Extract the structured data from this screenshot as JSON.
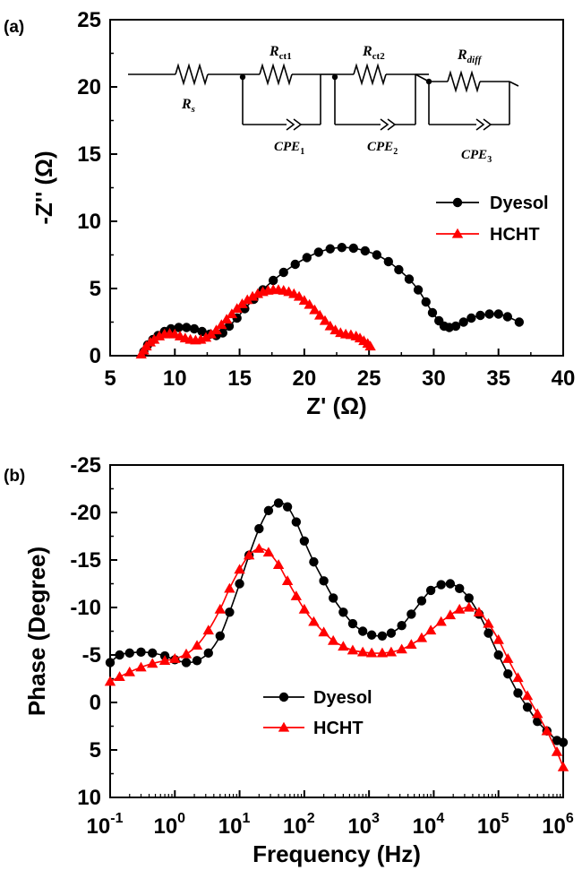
{
  "chart_data": [
    {
      "panel_label": "(a)",
      "type": "scatter",
      "xlabel": "Z' (Ω)",
      "ylabel": "-Z'' (Ω)",
      "xlim": [
        5,
        40
      ],
      "ylim": [
        0,
        25
      ],
      "xticks": [
        5,
        10,
        15,
        20,
        25,
        30,
        35,
        40
      ],
      "yticks": [
        0,
        5,
        10,
        15,
        20,
        25
      ],
      "legend_position": "center-right",
      "circuit_inset": {
        "rs": "R",
        "rs_sub": "s",
        "rct1": "R",
        "rct1_sub": "ct1",
        "rct2": "R",
        "rct2_sub": "ct2",
        "rdiff": "R",
        "rdiff_sub": "diff",
        "cpe1": "CPE",
        "cpe1_sub": "1",
        "cpe2": "CPE",
        "cpe2_sub": "2",
        "cpe3": "CPE",
        "cpe3_sub": "3"
      },
      "series": [
        {
          "name": "Dyesol",
          "color": "#000000",
          "marker": "circle",
          "points": [
            [
              7.6,
              0.3
            ],
            [
              7.9,
              0.8
            ],
            [
              8.3,
              1.2
            ],
            [
              8.7,
              1.5
            ],
            [
              9.2,
              1.8
            ],
            [
              9.7,
              2.0
            ],
            [
              10.3,
              2.1
            ],
            [
              10.9,
              2.1
            ],
            [
              11.5,
              2.0
            ],
            [
              12.1,
              1.8
            ],
            [
              12.7,
              1.6
            ],
            [
              13.2,
              1.5
            ],
            [
              13.7,
              1.7
            ],
            [
              14.2,
              2.2
            ],
            [
              14.8,
              2.8
            ],
            [
              15.4,
              3.5
            ],
            [
              16.1,
              4.2
            ],
            [
              16.8,
              4.9
            ],
            [
              17.6,
              5.6
            ],
            [
              18.4,
              6.2
            ],
            [
              19.3,
              6.8
            ],
            [
              20.2,
              7.3
            ],
            [
              21.1,
              7.7
            ],
            [
              22.0,
              7.95
            ],
            [
              22.9,
              8.05
            ],
            [
              23.8,
              8.0
            ],
            [
              24.7,
              7.8
            ],
            [
              25.6,
              7.5
            ],
            [
              26.5,
              7.0
            ],
            [
              27.3,
              6.4
            ],
            [
              28.1,
              5.7
            ],
            [
              28.8,
              4.9
            ],
            [
              29.4,
              4.0
            ],
            [
              29.9,
              3.2
            ],
            [
              30.4,
              2.6
            ],
            [
              30.8,
              2.2
            ],
            [
              31.2,
              2.1
            ],
            [
              31.7,
              2.2
            ],
            [
              32.3,
              2.5
            ],
            [
              32.9,
              2.8
            ],
            [
              33.6,
              3.0
            ],
            [
              34.3,
              3.1
            ],
            [
              35.0,
              3.1
            ],
            [
              35.7,
              2.9
            ],
            [
              36.6,
              2.5
            ]
          ]
        },
        {
          "name": "HCHT",
          "color": "#ff0000",
          "marker": "triangle",
          "points": [
            [
              7.4,
              0.1
            ],
            [
              7.6,
              0.4
            ],
            [
              7.8,
              0.7
            ],
            [
              8.1,
              1.0
            ],
            [
              8.4,
              1.2
            ],
            [
              8.8,
              1.45
            ],
            [
              9.2,
              1.6
            ],
            [
              9.6,
              1.65
            ],
            [
              10.0,
              1.6
            ],
            [
              10.4,
              1.45
            ],
            [
              10.8,
              1.3
            ],
            [
              11.2,
              1.2
            ],
            [
              11.6,
              1.15
            ],
            [
              12.0,
              1.2
            ],
            [
              12.4,
              1.35
            ],
            [
              12.8,
              1.6
            ],
            [
              13.2,
              1.9
            ],
            [
              13.6,
              2.3
            ],
            [
              14.0,
              2.7
            ],
            [
              14.4,
              3.1
            ],
            [
              14.8,
              3.5
            ],
            [
              15.2,
              3.85
            ],
            [
              15.6,
              4.15
            ],
            [
              16.0,
              4.4
            ],
            [
              16.4,
              4.6
            ],
            [
              16.8,
              4.75
            ],
            [
              17.2,
              4.85
            ],
            [
              17.6,
              4.9
            ],
            [
              18.0,
              4.9
            ],
            [
              18.4,
              4.85
            ],
            [
              18.8,
              4.75
            ],
            [
              19.2,
              4.6
            ],
            [
              19.6,
              4.4
            ],
            [
              20.0,
              4.1
            ],
            [
              20.4,
              3.8
            ],
            [
              20.8,
              3.4
            ],
            [
              21.2,
              3.0
            ],
            [
              21.6,
              2.6
            ],
            [
              22.0,
              2.2
            ],
            [
              22.4,
              1.9
            ],
            [
              22.8,
              1.7
            ],
            [
              23.2,
              1.6
            ],
            [
              23.6,
              1.55
            ],
            [
              24.0,
              1.45
            ],
            [
              24.3,
              1.3
            ],
            [
              24.6,
              1.1
            ],
            [
              24.9,
              0.9
            ],
            [
              25.1,
              0.7
            ]
          ]
        }
      ]
    },
    {
      "panel_label": "(b)",
      "type": "line",
      "xlabel": "Frequency (Hz)",
      "ylabel": "Phase (Degree)",
      "xscale": "log",
      "xlim": [
        0.1,
        1000000
      ],
      "ylim": [
        10,
        -25
      ],
      "xtick_exponents": [
        "-1",
        "0",
        "1",
        "2",
        "3",
        "4",
        "5",
        "6"
      ],
      "xtick_base": "10",
      "yticks": [
        "-25",
        "-20",
        "-15",
        "-10",
        "-5",
        "0",
        "5",
        "10"
      ],
      "legend_position": "bottom-center",
      "series": [
        {
          "name": "Dyesol",
          "color": "#000000",
          "marker": "circle",
          "points": [
            [
              0.1,
              -4.2
            ],
            [
              0.14,
              -5.0
            ],
            [
              0.2,
              -5.2
            ],
            [
              0.3,
              -5.3
            ],
            [
              0.45,
              -5.2
            ],
            [
              0.7,
              -4.9
            ],
            [
              1.0,
              -4.5
            ],
            [
              1.5,
              -4.2
            ],
            [
              2.2,
              -4.4
            ],
            [
              3.3,
              -5.2
            ],
            [
              5,
              -7.0
            ],
            [
              7,
              -9.5
            ],
            [
              10,
              -12.5
            ],
            [
              14,
              -15.5
            ],
            [
              20,
              -18.3
            ],
            [
              28,
              -20.2
            ],
            [
              40,
              -21.0
            ],
            [
              55,
              -20.6
            ],
            [
              75,
              -19.0
            ],
            [
              100,
              -17.0
            ],
            [
              140,
              -14.8
            ],
            [
              200,
              -12.8
            ],
            [
              280,
              -11.0
            ],
            [
              400,
              -9.5
            ],
            [
              560,
              -8.3
            ],
            [
              800,
              -7.5
            ],
            [
              1100,
              -7.1
            ],
            [
              1600,
              -7.0
            ],
            [
              2200,
              -7.3
            ],
            [
              3200,
              -8.1
            ],
            [
              4500,
              -9.3
            ],
            [
              6500,
              -10.7
            ],
            [
              9000,
              -11.8
            ],
            [
              13000,
              -12.4
            ],
            [
              18000,
              -12.5
            ],
            [
              25000,
              -12.0
            ],
            [
              35000,
              -11.0
            ],
            [
              50000,
              -9.3
            ],
            [
              70000,
              -7.3
            ],
            [
              100000,
              -5.0
            ],
            [
              140000,
              -3.0
            ],
            [
              200000,
              -1.0
            ],
            [
              280000,
              0.5
            ],
            [
              400000,
              2.0
            ],
            [
              560000,
              3.0
            ],
            [
              800000,
              4.0
            ],
            [
              1000000,
              4.2
            ]
          ]
        },
        {
          "name": "HCHT",
          "color": "#ff0000",
          "marker": "triangle",
          "points": [
            [
              0.1,
              -2.2
            ],
            [
              0.14,
              -2.7
            ],
            [
              0.2,
              -3.2
            ],
            [
              0.3,
              -3.7
            ],
            [
              0.45,
              -4.1
            ],
            [
              0.7,
              -4.4
            ],
            [
              1.0,
              -4.6
            ],
            [
              1.5,
              -5.1
            ],
            [
              2.2,
              -6.0
            ],
            [
              3.3,
              -7.6
            ],
            [
              5,
              -9.8
            ],
            [
              7,
              -12.0
            ],
            [
              10,
              -14.0
            ],
            [
              14,
              -15.5
            ],
            [
              20,
              -16.2
            ],
            [
              28,
              -15.8
            ],
            [
              40,
              -14.5
            ],
            [
              55,
              -12.8
            ],
            [
              75,
              -11.2
            ],
            [
              100,
              -9.8
            ],
            [
              140,
              -8.5
            ],
            [
              200,
              -7.4
            ],
            [
              280,
              -6.5
            ],
            [
              400,
              -5.9
            ],
            [
              560,
              -5.5
            ],
            [
              800,
              -5.3
            ],
            [
              1100,
              -5.2
            ],
            [
              1600,
              -5.2
            ],
            [
              2200,
              -5.3
            ],
            [
              3200,
              -5.6
            ],
            [
              4500,
              -6.1
            ],
            [
              6500,
              -6.8
            ],
            [
              9000,
              -7.6
            ],
            [
              13000,
              -8.5
            ],
            [
              18000,
              -9.2
            ],
            [
              25000,
              -9.8
            ],
            [
              35000,
              -10.0
            ],
            [
              50000,
              -9.5
            ],
            [
              70000,
              -8.3
            ],
            [
              100000,
              -6.6
            ],
            [
              140000,
              -4.6
            ],
            [
              200000,
              -2.6
            ],
            [
              280000,
              -0.7
            ],
            [
              400000,
              1.2
            ],
            [
              560000,
              3.0
            ],
            [
              800000,
              5.2
            ],
            [
              1000000,
              6.8
            ]
          ]
        }
      ]
    }
  ]
}
